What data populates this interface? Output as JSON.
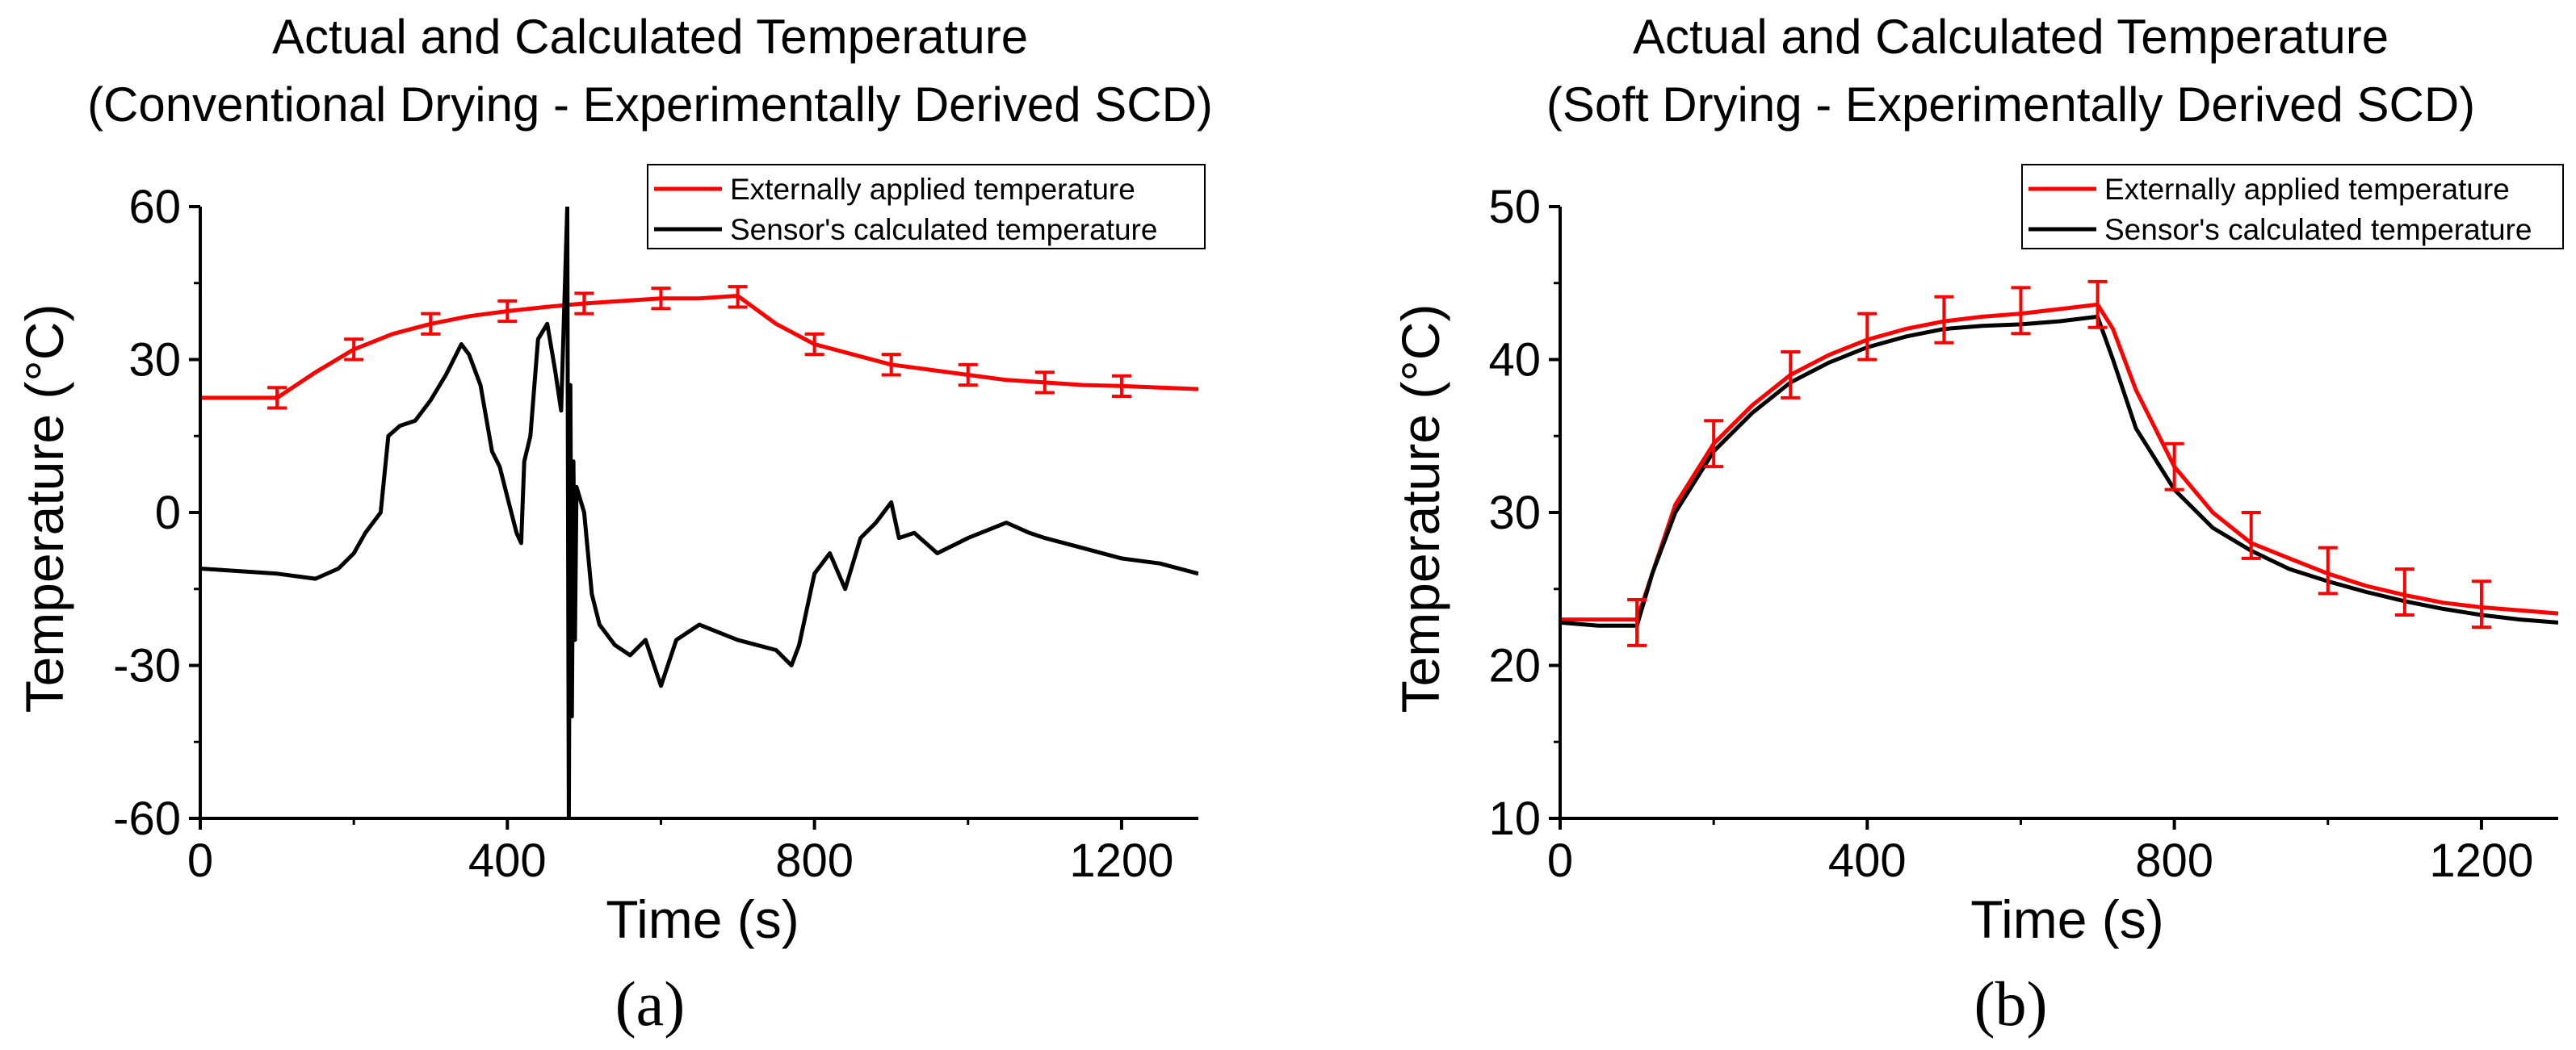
{
  "chart_data": [
    {
      "type": "line",
      "title": [
        "Actual and Calculated Temperature",
        "(Conventional Drying - Experimentally Derived SCD)"
      ],
      "xlabel": "Time (s)",
      "ylabel": "Temperature (°C)",
      "panel_label": "(a)",
      "xlim": [
        0,
        1300
      ],
      "ylim": [
        -60,
        60
      ],
      "xticks": [
        0,
        400,
        800,
        1200
      ],
      "xtick_labels": [
        "0",
        "400",
        "800",
        "1200"
      ],
      "yticks": [
        -60,
        -30,
        0,
        30,
        60
      ],
      "ytick_labels": [
        "-60",
        "-30",
        "0",
        "30",
        "60"
      ],
      "legend": {
        "position": "top-right",
        "entries": [
          "Externally applied temperature",
          "Sensor's calculated temperature"
        ]
      },
      "series": [
        {
          "name": "Externally applied temperature",
          "color": "#ff0000",
          "x": [
            0,
            100,
            150,
            200,
            250,
            300,
            350,
            400,
            450,
            500,
            550,
            600,
            650,
            700,
            750,
            800,
            850,
            900,
            950,
            1000,
            1050,
            1100,
            1150,
            1200,
            1250,
            1300
          ],
          "y": [
            22.5,
            22.5,
            27.5,
            32,
            35,
            37,
            38.5,
            39.5,
            40.3,
            41,
            41.5,
            42,
            42,
            42.5,
            37,
            33,
            31,
            29,
            28,
            27,
            26,
            25.5,
            25,
            24.8,
            24.5,
            24.2
          ],
          "error_x": [
            100,
            200,
            300,
            400,
            500,
            600,
            700,
            800,
            900,
            1000,
            1100,
            1200
          ],
          "error_y": [
            22.5,
            32,
            37,
            39.5,
            41,
            42,
            42.3,
            33,
            29,
            27,
            25.5,
            24.8
          ],
          "error_half": [
            2,
            2,
            2,
            2,
            2,
            2,
            2,
            2,
            2,
            2,
            2,
            2
          ]
        },
        {
          "name": "Sensor's calculated temperature",
          "color": "#000000",
          "x": [
            0,
            50,
            100,
            150,
            180,
            200,
            215,
            225,
            235,
            245,
            260,
            280,
            300,
            320,
            340,
            350,
            365,
            380,
            390,
            400,
            412,
            418,
            422,
            430,
            440,
            452,
            462,
            470,
            478,
            480,
            482,
            484,
            486,
            488,
            490,
            500,
            510,
            520,
            540,
            560,
            580,
            600,
            620,
            650,
            700,
            750,
            770,
            780,
            800,
            820,
            840,
            860,
            880,
            900,
            910,
            930,
            960,
            1000,
            1050,
            1080,
            1100,
            1150,
            1200,
            1250,
            1300
          ],
          "y": [
            -11,
            -11.5,
            -12,
            -13,
            -11,
            -8,
            -4,
            -2,
            0,
            15,
            17,
            18,
            22,
            27,
            33,
            31,
            25,
            12,
            9,
            3,
            -4,
            -6,
            10,
            15,
            34,
            37,
            28,
            20,
            60,
            -60,
            25,
            -40,
            10,
            -25,
            5,
            0,
            -16,
            -22,
            -26,
            -28,
            -25,
            -34,
            -25,
            -22,
            -25,
            -27,
            -30,
            -26,
            -12,
            -8,
            -15,
            -5,
            -2,
            2,
            -5,
            -4,
            -8,
            -5,
            -2,
            -4,
            -5,
            -7,
            -9,
            -10,
            -12
          ]
        }
      ]
    },
    {
      "type": "line",
      "title": [
        "Actual and Calculated Temperature",
        "(Soft Drying - Experimentally Derived SCD)"
      ],
      "xlabel": "Time (s)",
      "ylabel": "Temperature (°C)",
      "panel_label": "(b)",
      "xlim": [
        0,
        1300
      ],
      "ylim": [
        10,
        50
      ],
      "xticks": [
        0,
        400,
        800,
        1200
      ],
      "xtick_labels": [
        "0",
        "400",
        "800",
        "1200"
      ],
      "yticks": [
        10,
        20,
        30,
        40,
        50
      ],
      "ytick_labels": [
        "10",
        "20",
        "30",
        "40",
        "50"
      ],
      "legend": {
        "position": "top-right",
        "entries": [
          "Externally applied temperature",
          "Sensor's calculated temperature"
        ]
      },
      "series": [
        {
          "name": "Externally applied temperature",
          "color": "#ff0000",
          "x": [
            0,
            50,
            100,
            120,
            150,
            200,
            250,
            300,
            350,
            400,
            450,
            500,
            550,
            600,
            650,
            700,
            720,
            750,
            800,
            850,
            900,
            950,
            1000,
            1050,
            1100,
            1150,
            1200,
            1250,
            1300
          ],
          "y": [
            23,
            23,
            23,
            26,
            30.5,
            34.5,
            37,
            39,
            40.3,
            41.3,
            42,
            42.5,
            42.8,
            43,
            43.3,
            43.6,
            42,
            38,
            33,
            30,
            28,
            27,
            26,
            25.2,
            24.6,
            24.1,
            23.8,
            23.6,
            23.4
          ],
          "error_x": [
            100,
            200,
            300,
            400,
            500,
            600,
            700,
            800,
            900,
            1000,
            1100,
            1200
          ],
          "error_y": [
            22.8,
            34.5,
            39,
            41.5,
            42.6,
            43.2,
            43.6,
            33,
            28.5,
            26.2,
            24.8,
            24
          ],
          "error_half": [
            1.5,
            1.5,
            1.5,
            1.5,
            1.5,
            1.5,
            1.5,
            1.5,
            1.5,
            1.5,
            1.5,
            1.5
          ]
        },
        {
          "name": "Sensor's calculated temperature",
          "color": "#000000",
          "x": [
            0,
            50,
            100,
            120,
            150,
            200,
            250,
            300,
            350,
            400,
            450,
            500,
            550,
            600,
            650,
            700,
            720,
            750,
            800,
            850,
            900,
            950,
            1000,
            1050,
            1100,
            1150,
            1200,
            1250,
            1300
          ],
          "y": [
            22.8,
            22.6,
            22.6,
            26,
            30,
            34,
            36.5,
            38.5,
            39.8,
            40.8,
            41.5,
            42,
            42.2,
            42.3,
            42.5,
            42.8,
            40,
            35.5,
            31.5,
            29,
            27.5,
            26.3,
            25.5,
            24.8,
            24.2,
            23.7,
            23.3,
            23,
            22.8
          ]
        }
      ]
    }
  ]
}
